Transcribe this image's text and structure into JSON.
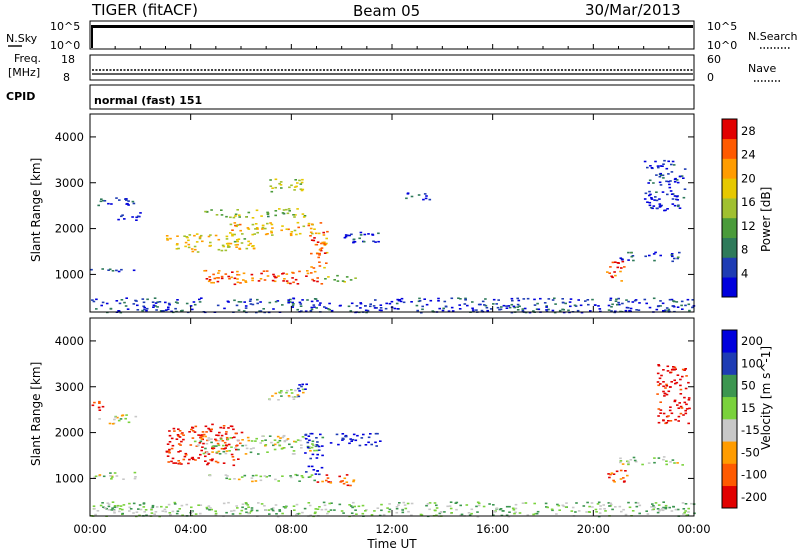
{
  "header": {
    "radar": "TIGER (fitACF)",
    "beam": "Beam 05",
    "date": "30/Mar/2013"
  },
  "panels": {
    "nsky": {
      "label": "N.Sky",
      "ticks": [
        "10^5",
        "10^0"
      ],
      "right_label": "N.Search",
      "right_ticks": [
        "10^5",
        "10^0"
      ]
    },
    "freq": {
      "label_lines": [
        "Freq.",
        "[MHz]"
      ],
      "ticks": [
        "18",
        "8"
      ],
      "right_label": "Nave",
      "right_ticks": [
        "60",
        "0"
      ]
    },
    "cpid": {
      "label": "CPID",
      "text": "normal (fast) 151"
    }
  },
  "colors": {
    "background": "#ffffff",
    "axis": "#000000"
  },
  "chart_data": [
    {
      "type": "heatmap",
      "name": "power",
      "xlabel": "Time UT",
      "ylabel": "Slant Range [km]",
      "x_ticks": [
        "00:00",
        "04:00",
        "08:00",
        "12:00",
        "16:00",
        "20:00",
        "00:00"
      ],
      "x_range_hours": [
        0,
        24
      ],
      "ylim": [
        180,
        4500
      ],
      "y_ticks": [
        1000,
        2000,
        3000,
        4000
      ],
      "colorbar": {
        "label": "Power [dB]",
        "range": [
          0,
          30
        ],
        "ticks": [
          4,
          8,
          12,
          16,
          20,
          24,
          28
        ],
        "colors": [
          "#0000dd",
          "#1e3cb4",
          "#2e7a5a",
          "#4a9b3a",
          "#a0c030",
          "#e6c800",
          "#ff9c00",
          "#ff5a00",
          "#e10000"
        ]
      },
      "features": [
        {
          "x": [
            0.0,
            1.7
          ],
          "y": [
            2500,
            2700
          ],
          "level": 0.15
        },
        {
          "x": [
            0.0,
            1.8
          ],
          "y": [
            1050,
            1150
          ],
          "level": 0.2
        },
        {
          "x": [
            1.0,
            2.0
          ],
          "y": [
            2200,
            2400
          ],
          "level": 0.1
        },
        {
          "x": [
            3.0,
            6.5
          ],
          "y": [
            1500,
            1900
          ],
          "level": 0.6
        },
        {
          "x": [
            5.5,
            9.0
          ],
          "y": [
            1850,
            2150
          ],
          "level": 0.65
        },
        {
          "x": [
            4.5,
            8.5
          ],
          "y": [
            2250,
            2450
          ],
          "level": 0.45
        },
        {
          "x": [
            7.0,
            8.5
          ],
          "y": [
            2800,
            3100
          ],
          "level": 0.5
        },
        {
          "x": [
            4.5,
            9.3
          ],
          "y": [
            800,
            1100
          ],
          "level": 0.85
        },
        {
          "x": [
            8.7,
            9.4
          ],
          "y": [
            1100,
            2150
          ],
          "level": 0.8
        },
        {
          "x": [
            9.3,
            10.6
          ],
          "y": [
            850,
            1000
          ],
          "level": 0.5
        },
        {
          "x": [
            10.0,
            11.5
          ],
          "y": [
            1700,
            2000
          ],
          "level": 0.1
        },
        {
          "x": [
            12.5,
            13.5
          ],
          "y": [
            2600,
            2800
          ],
          "level": 0.1
        },
        {
          "x": [
            20.5,
            21.2
          ],
          "y": [
            850,
            1300
          ],
          "level": 0.85
        },
        {
          "x": [
            21.0,
            23.5
          ],
          "y": [
            1300,
            1500
          ],
          "level": 0.2
        },
        {
          "x": [
            22.0,
            23.6
          ],
          "y": [
            2400,
            3500
          ],
          "level": 0.1
        },
        {
          "x": [
            0.0,
            24.0
          ],
          "y": [
            180,
            500
          ],
          "level": 0.15
        }
      ]
    },
    {
      "type": "heatmap",
      "name": "velocity",
      "xlabel": "Time UT",
      "ylabel": "Slant Range [km]",
      "x_ticks": [
        "00:00",
        "04:00",
        "08:00",
        "12:00",
        "16:00",
        "20:00",
        "00:00"
      ],
      "x_range_hours": [
        0,
        24
      ],
      "ylim": [
        180,
        4500
      ],
      "y_ticks": [
        1000,
        2000,
        3000,
        4000
      ],
      "colorbar": {
        "label": "Velocity [m s^-1]",
        "range": [
          -250,
          250
        ],
        "tick_labels": [
          "200",
          "100",
          "50",
          "15",
          "-15",
          "-50",
          "-100",
          "-200"
        ],
        "colors": [
          "#e10000",
          "#ff5a00",
          "#ff9c00",
          "#c8c8c8",
          "#7ad23c",
          "#3c9650",
          "#1e3cb4",
          "#0000dd"
        ]
      },
      "features": [
        {
          "x": [
            0.0,
            0.5
          ],
          "y": [
            2500,
            2700
          ],
          "level": 0.1
        },
        {
          "x": [
            0.3,
            1.8
          ],
          "y": [
            2200,
            2400
          ],
          "level": 0.5
        },
        {
          "x": [
            0.0,
            2.0
          ],
          "y": [
            1000,
            1150
          ],
          "level": 0.5
        },
        {
          "x": [
            3.0,
            6.0
          ],
          "y": [
            1300,
            2200
          ],
          "level": 0.05
        },
        {
          "x": [
            4.0,
            9.0
          ],
          "y": [
            1550,
            1950
          ],
          "level": 0.5
        },
        {
          "x": [
            4.5,
            9.0
          ],
          "y": [
            950,
            1100
          ],
          "level": 0.5
        },
        {
          "x": [
            7.0,
            8.5
          ],
          "y": [
            2700,
            3000
          ],
          "level": 0.5
        },
        {
          "x": [
            8.2,
            8.6
          ],
          "y": [
            2800,
            3100
          ],
          "level": 0.95
        },
        {
          "x": [
            8.5,
            9.2
          ],
          "y": [
            1100,
            2000
          ],
          "level": 0.92
        },
        {
          "x": [
            9.0,
            10.5
          ],
          "y": [
            850,
            1100
          ],
          "level": 0.15
        },
        {
          "x": [
            9.5,
            11.5
          ],
          "y": [
            1700,
            2000
          ],
          "level": 0.95
        },
        {
          "x": [
            20.5,
            21.3
          ],
          "y": [
            850,
            1200
          ],
          "level": 0.15
        },
        {
          "x": [
            21.0,
            23.5
          ],
          "y": [
            1300,
            1500
          ],
          "level": 0.5
        },
        {
          "x": [
            22.5,
            23.8
          ],
          "y": [
            2200,
            3500
          ],
          "level": 0.05
        },
        {
          "x": [
            0.0,
            24.0
          ],
          "y": [
            180,
            500
          ],
          "level": 0.55
        }
      ]
    }
  ]
}
